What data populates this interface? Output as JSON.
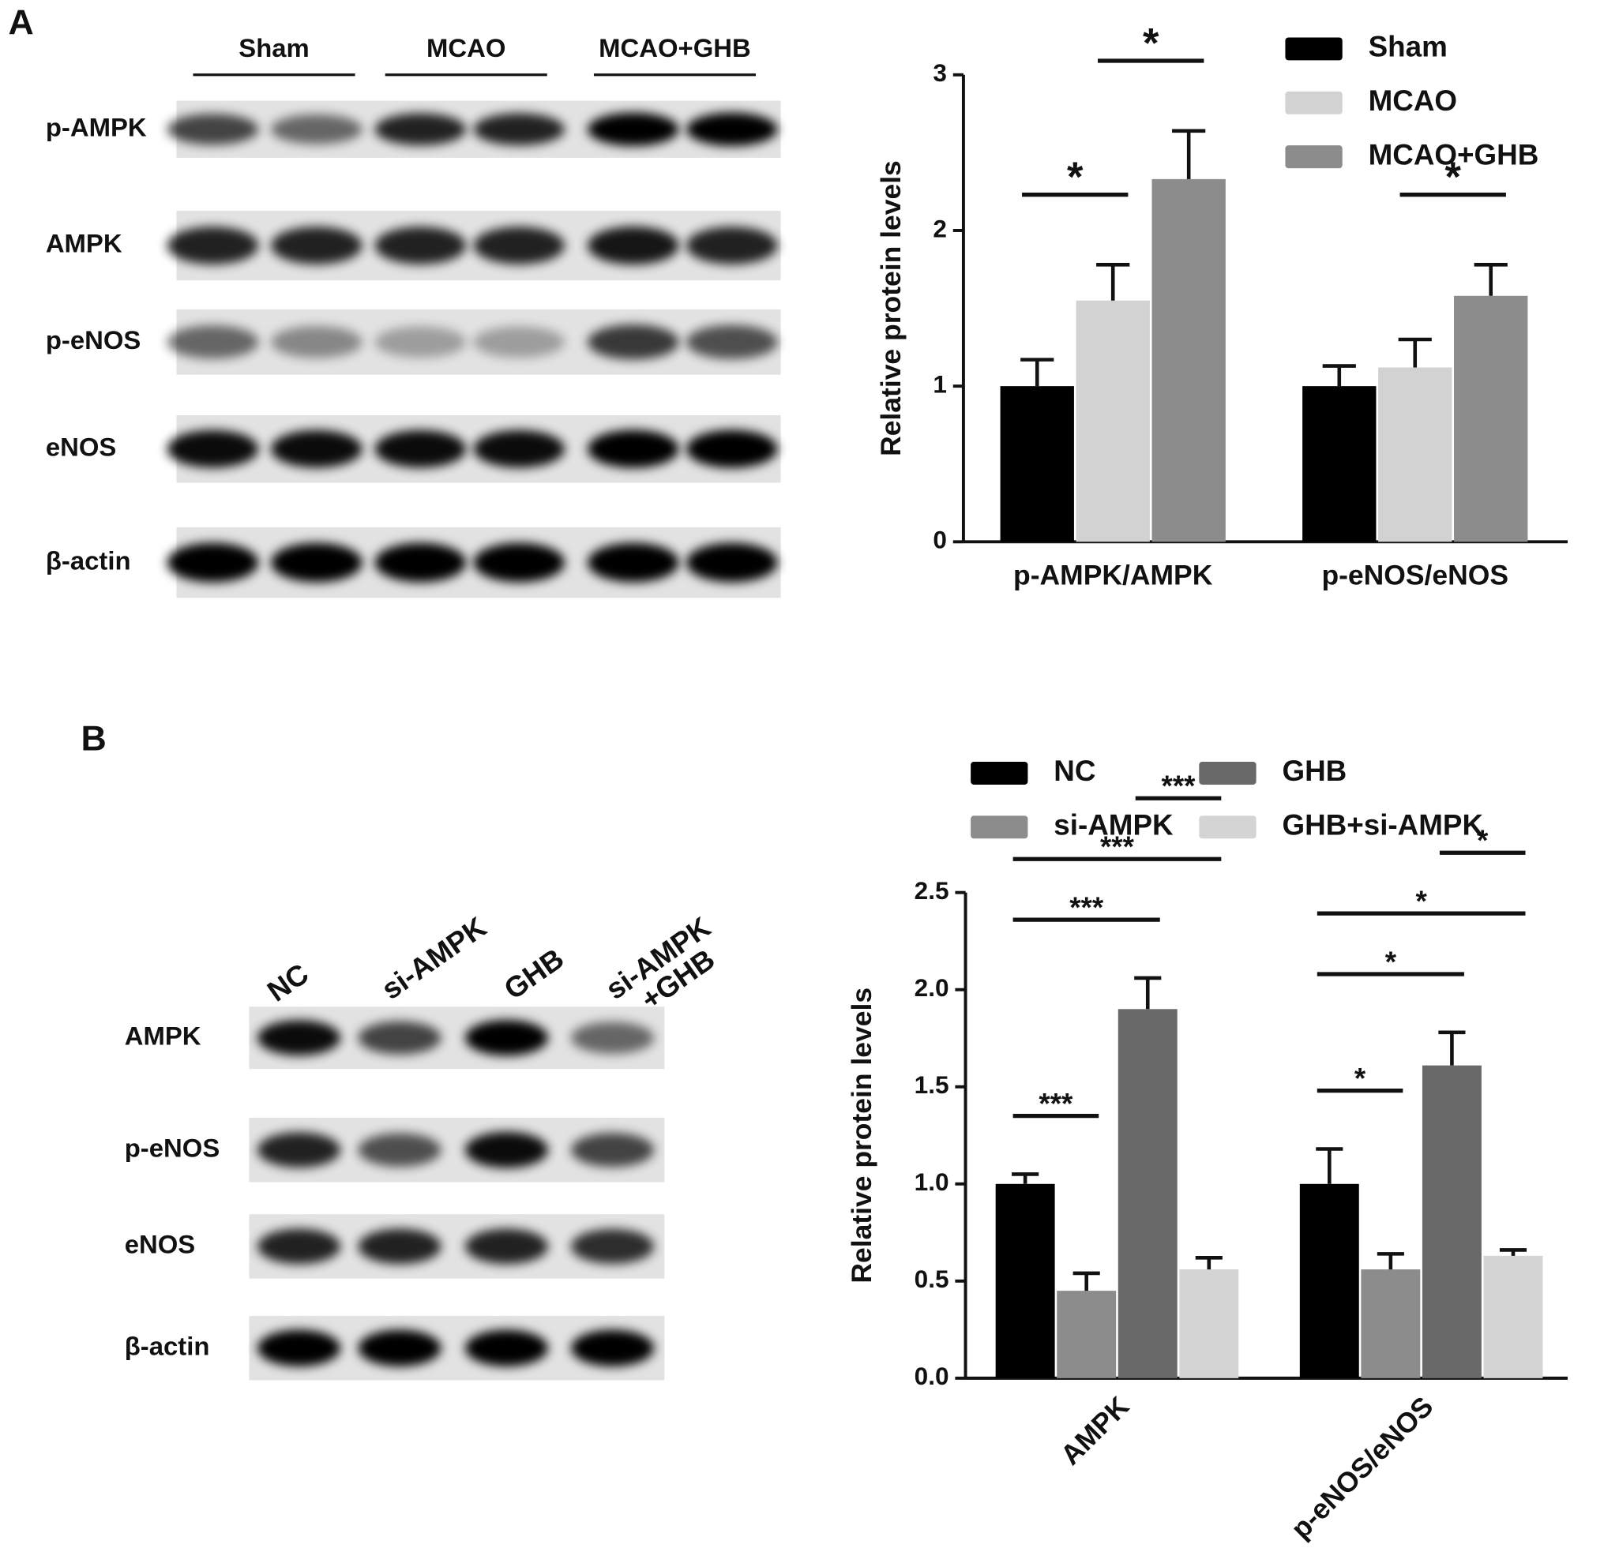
{
  "panels": {
    "a": {
      "label": "A",
      "blot": {
        "groups": [
          "Sham",
          "MCAO",
          "MCAO+GHB"
        ],
        "rows": [
          "p-AMPK",
          "AMPK",
          "p-eNOS",
          "eNOS",
          "β-actin"
        ]
      }
    },
    "b": {
      "label": "B",
      "blot": {
        "lanes": [
          [
            "NC"
          ],
          [
            "si-AMPK"
          ],
          [
            "GHB"
          ],
          [
            "si-AMPK",
            "+GHB"
          ]
        ],
        "rows": [
          "AMPK",
          "p-eNOS",
          "eNOS",
          "β-actin"
        ]
      }
    }
  },
  "chart_data": [
    {
      "type": "bar",
      "y_label": "Relative protein levels",
      "categories": [
        "p-AMPK/AMPK",
        "p-eNOS/eNOS"
      ],
      "series": [
        {
          "name": "Sham",
          "color": "#000000",
          "values": [
            1.0,
            1.0
          ],
          "errors": [
            0.17,
            0.13
          ]
        },
        {
          "name": "MCAO",
          "color": "#d2d2d2",
          "values": [
            1.55,
            1.12
          ],
          "errors": [
            0.23,
            0.18
          ]
        },
        {
          "name": "MCAO+GHB",
          "color": "#8c8c8c",
          "values": [
            2.33,
            1.58
          ],
          "errors": [
            0.31,
            0.2
          ]
        }
      ],
      "ylim": [
        0,
        3
      ],
      "yticks": [
        0,
        1,
        2,
        3
      ],
      "legend": "top-right",
      "annotations": [
        {
          "text": "*",
          "category": "p-AMPK/AMPK",
          "between": [
            "Sham",
            "MCAO"
          ]
        },
        {
          "text": "*",
          "category": "p-AMPK/AMPK",
          "between": [
            "MCAO",
            "MCAO+GHB"
          ]
        },
        {
          "text": "*",
          "category": "p-eNOS/eNOS",
          "between": [
            "MCAO",
            "MCAO+GHB"
          ]
        }
      ]
    },
    {
      "type": "bar",
      "y_label": "Relative protein levels",
      "categories": [
        "AMPK",
        "p-eNOS/eNOS"
      ],
      "series": [
        {
          "name": "NC",
          "color": "#000000",
          "values": [
            1.0,
            1.0
          ],
          "errors": [
            0.05,
            0.18
          ]
        },
        {
          "name": "si-AMPK",
          "color": "#8c8c8c",
          "values": [
            0.45,
            0.56
          ],
          "errors": [
            0.09,
            0.08
          ]
        },
        {
          "name": "GHB",
          "color": "#696969",
          "values": [
            1.9,
            1.61
          ],
          "errors": [
            0.16,
            0.17
          ]
        },
        {
          "name": "GHB+si-AMPK",
          "color": "#d4d4d4",
          "values": [
            0.56,
            0.63
          ],
          "errors": [
            0.06,
            0.03
          ]
        }
      ],
      "ylim": [
        0,
        2.5
      ],
      "yticks": [
        {
          "value": 0,
          "label": "0.0"
        },
        {
          "value": 0.5,
          "label": "0.5"
        },
        {
          "value": 1,
          "label": "1.0"
        },
        {
          "value": 1.5,
          "label": "1.5"
        },
        {
          "value": 2,
          "label": "2.0"
        },
        {
          "value": 2.5,
          "label": "2.5"
        }
      ],
      "legend": "top",
      "annotations": [
        {
          "text": "***",
          "category": "AMPK",
          "between": [
            "NC",
            "si-AMPK"
          ]
        },
        {
          "text": "***",
          "category": "AMPK",
          "between": [
            "NC",
            "GHB"
          ]
        },
        {
          "text": "***",
          "category": "AMPK",
          "between": [
            "NC",
            "GHB+si-AMPK"
          ]
        },
        {
          "text": "***",
          "category": "AMPK",
          "between": [
            "GHB",
            "GHB+si-AMPK"
          ]
        },
        {
          "text": "*",
          "category": "p-eNOS/eNOS",
          "between": [
            "NC",
            "si-AMPK"
          ]
        },
        {
          "text": "*",
          "category": "p-eNOS/eNOS",
          "between": [
            "NC",
            "GHB"
          ]
        },
        {
          "text": "*",
          "category": "p-eNOS/eNOS",
          "between": [
            "NC",
            "GHB+si-AMPK"
          ]
        },
        {
          "text": "*",
          "category": "p-eNOS/eNOS",
          "between": [
            "GHB",
            "GHB+si-AMPK"
          ]
        }
      ]
    }
  ]
}
